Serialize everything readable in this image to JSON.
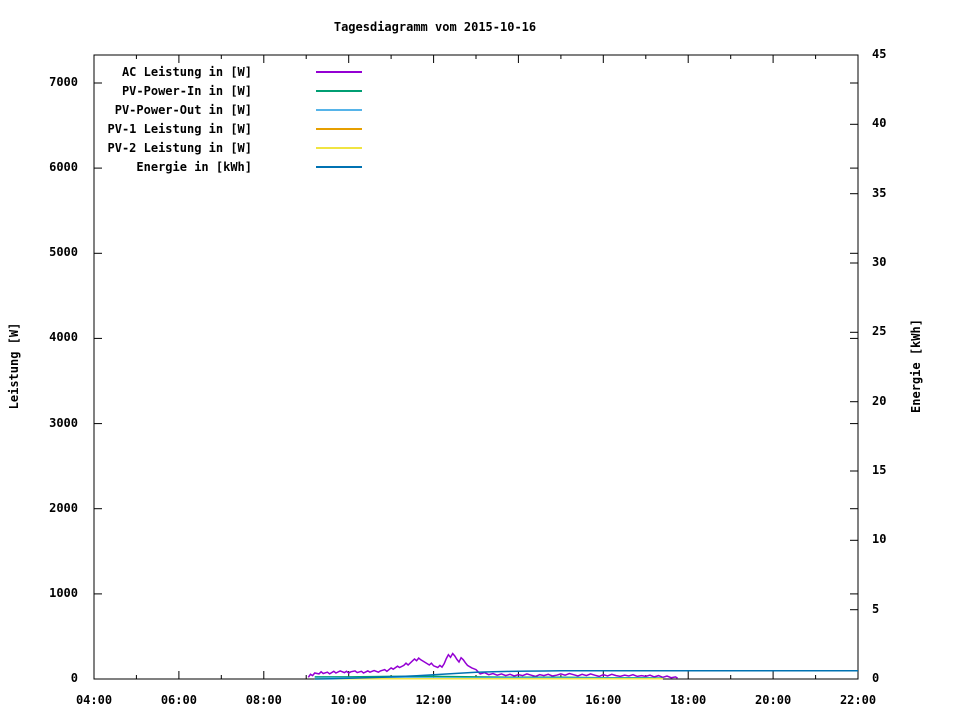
{
  "chart_data": {
    "type": "line",
    "title": "Tagesdiagramm vom 2015-10-16",
    "legend_position": "top-left-inside",
    "grid": false,
    "x_axis": {
      "label": "",
      "range_hours": [
        4,
        22
      ],
      "minor_tick_every_hours": 1,
      "ticks": [
        {
          "h": 4,
          "label": "04:00"
        },
        {
          "h": 6,
          "label": "06:00"
        },
        {
          "h": 8,
          "label": "08:00"
        },
        {
          "h": 10,
          "label": "10:00"
        },
        {
          "h": 12,
          "label": "12:00"
        },
        {
          "h": 14,
          "label": "14:00"
        },
        {
          "h": 16,
          "label": "16:00"
        },
        {
          "h": 18,
          "label": "18:00"
        },
        {
          "h": 20,
          "label": "20:00"
        },
        {
          "h": 22,
          "label": "22:00"
        }
      ]
    },
    "y_axis": {
      "label": "Leistung [W]",
      "range": [
        0,
        7330
      ],
      "ticks": [
        {
          "v": 0,
          "label": "0"
        },
        {
          "v": 1000,
          "label": "1000"
        },
        {
          "v": 2000,
          "label": "2000"
        },
        {
          "v": 3000,
          "label": "3000"
        },
        {
          "v": 4000,
          "label": "4000"
        },
        {
          "v": 5000,
          "label": "5000"
        },
        {
          "v": 6000,
          "label": "6000"
        },
        {
          "v": 7000,
          "label": "7000"
        }
      ]
    },
    "y2_axis": {
      "label": "Energie [kWh]",
      "range": [
        0,
        45
      ],
      "ticks": [
        {
          "v": 0,
          "label": "0"
        },
        {
          "v": 5,
          "label": "5"
        },
        {
          "v": 10,
          "label": "10"
        },
        {
          "v": 15,
          "label": "15"
        },
        {
          "v": 20,
          "label": "20"
        },
        {
          "v": 25,
          "label": "25"
        },
        {
          "v": 30,
          "label": "30"
        },
        {
          "v": 35,
          "label": "35"
        },
        {
          "v": 40,
          "label": "40"
        },
        {
          "v": 45,
          "label": "45"
        }
      ]
    },
    "series": [
      {
        "name": "AC Leistung in [W]",
        "color": "#9400d3",
        "axis": "y1",
        "points": [
          [
            9.05,
            20
          ],
          [
            9.1,
            55
          ],
          [
            9.15,
            40
          ],
          [
            9.2,
            70
          ],
          [
            9.3,
            60
          ],
          [
            9.35,
            85
          ],
          [
            9.4,
            65
          ],
          [
            9.5,
            80
          ],
          [
            9.55,
            60
          ],
          [
            9.65,
            90
          ],
          [
            9.7,
            70
          ],
          [
            9.8,
            95
          ],
          [
            9.9,
            75
          ],
          [
            9.95,
            90
          ],
          [
            10.0,
            70
          ],
          [
            10.05,
            85
          ],
          [
            10.15,
            95
          ],
          [
            10.2,
            75
          ],
          [
            10.3,
            90
          ],
          [
            10.35,
            70
          ],
          [
            10.45,
            95
          ],
          [
            10.5,
            80
          ],
          [
            10.6,
            100
          ],
          [
            10.7,
            80
          ],
          [
            10.75,
            95
          ],
          [
            10.85,
            110
          ],
          [
            10.9,
            90
          ],
          [
            11.0,
            130
          ],
          [
            11.05,
            115
          ],
          [
            11.15,
            150
          ],
          [
            11.2,
            135
          ],
          [
            11.3,
            160
          ],
          [
            11.35,
            185
          ],
          [
            11.4,
            165
          ],
          [
            11.5,
            210
          ],
          [
            11.55,
            235
          ],
          [
            11.6,
            215
          ],
          [
            11.65,
            245
          ],
          [
            11.7,
            225
          ],
          [
            11.8,
            195
          ],
          [
            11.9,
            165
          ],
          [
            11.95,
            185
          ],
          [
            12.0,
            155
          ],
          [
            12.1,
            135
          ],
          [
            12.15,
            160
          ],
          [
            12.2,
            140
          ],
          [
            12.25,
            180
          ],
          [
            12.3,
            240
          ],
          [
            12.35,
            285
          ],
          [
            12.4,
            255
          ],
          [
            12.45,
            300
          ],
          [
            12.5,
            270
          ],
          [
            12.55,
            230
          ],
          [
            12.6,
            200
          ],
          [
            12.65,
            250
          ],
          [
            12.7,
            225
          ],
          [
            12.75,
            190
          ],
          [
            12.8,
            160
          ],
          [
            12.9,
            130
          ],
          [
            13.0,
            110
          ],
          [
            13.05,
            85
          ],
          [
            13.1,
            60
          ],
          [
            13.2,
            75
          ],
          [
            13.3,
            50
          ],
          [
            13.4,
            65
          ],
          [
            13.5,
            45
          ],
          [
            13.6,
            60
          ],
          [
            13.7,
            40
          ],
          [
            13.8,
            55
          ],
          [
            13.9,
            35
          ],
          [
            14.0,
            50
          ],
          [
            14.1,
            40
          ],
          [
            14.2,
            60
          ],
          [
            14.3,
            45
          ],
          [
            14.4,
            30
          ],
          [
            14.5,
            50
          ],
          [
            14.6,
            40
          ],
          [
            14.7,
            55
          ],
          [
            14.8,
            35
          ],
          [
            14.9,
            45
          ],
          [
            15.0,
            60
          ],
          [
            15.1,
            45
          ],
          [
            15.2,
            65
          ],
          [
            15.3,
            50
          ],
          [
            15.4,
            35
          ],
          [
            15.5,
            55
          ],
          [
            15.6,
            40
          ],
          [
            15.7,
            60
          ],
          [
            15.8,
            45
          ],
          [
            15.9,
            30
          ],
          [
            16.0,
            50
          ],
          [
            16.1,
            35
          ],
          [
            16.2,
            55
          ],
          [
            16.3,
            40
          ],
          [
            16.4,
            30
          ],
          [
            16.5,
            45
          ],
          [
            16.6,
            35
          ],
          [
            16.7,
            50
          ],
          [
            16.8,
            30
          ],
          [
            16.9,
            40
          ],
          [
            17.0,
            30
          ],
          [
            17.1,
            45
          ],
          [
            17.2,
            25
          ],
          [
            17.3,
            40
          ],
          [
            17.4,
            20
          ],
          [
            17.5,
            35
          ],
          [
            17.6,
            15
          ],
          [
            17.7,
            25
          ],
          [
            17.75,
            10
          ]
        ]
      },
      {
        "name": "PV-Power-In in [W]",
        "color": "#009e73",
        "axis": "y1",
        "points": [
          [
            9.2,
            25
          ],
          [
            10.0,
            25
          ],
          [
            11.0,
            30
          ],
          [
            12.0,
            30
          ],
          [
            13.0,
            25
          ],
          [
            14.0,
            20
          ],
          [
            15.0,
            20
          ],
          [
            16.0,
            15
          ],
          [
            17.0,
            15
          ],
          [
            17.4,
            10
          ]
        ]
      },
      {
        "name": "PV-Power-Out in [W]",
        "color": "#56b4e9",
        "axis": "y1",
        "points": [
          [
            9.2,
            12
          ],
          [
            11.0,
            15
          ],
          [
            13.0,
            12
          ],
          [
            15.0,
            10
          ],
          [
            17.0,
            8
          ],
          [
            17.4,
            5
          ]
        ]
      },
      {
        "name": "PV-1 Leistung in [W]",
        "color": "#e69f00",
        "axis": "y1",
        "points": [
          [
            9.2,
            4
          ],
          [
            17.4,
            4
          ]
        ]
      },
      {
        "name": "PV-2 Leistung in [W]",
        "color": "#f0e442",
        "axis": "y1",
        "points": [
          [
            9.2,
            2
          ],
          [
            17.4,
            2
          ]
        ]
      },
      {
        "name": "Energie in [kWh]",
        "color": "#0072b2",
        "axis": "y2",
        "points": [
          [
            9.2,
            0
          ],
          [
            9.6,
            0.02
          ],
          [
            10.0,
            0.05
          ],
          [
            10.4,
            0.09
          ],
          [
            10.8,
            0.13
          ],
          [
            11.2,
            0.18
          ],
          [
            11.6,
            0.24
          ],
          [
            12.0,
            0.31
          ],
          [
            12.4,
            0.38
          ],
          [
            12.8,
            0.45
          ],
          [
            13.0,
            0.48
          ],
          [
            13.4,
            0.52
          ],
          [
            13.8,
            0.55
          ],
          [
            14.2,
            0.57
          ],
          [
            14.6,
            0.58
          ],
          [
            15.0,
            0.59
          ],
          [
            15.5,
            0.6
          ],
          [
            16.0,
            0.6
          ],
          [
            17.0,
            0.6
          ],
          [
            18.0,
            0.6
          ],
          [
            20.0,
            0.6
          ],
          [
            22.0,
            0.6
          ]
        ]
      }
    ]
  }
}
